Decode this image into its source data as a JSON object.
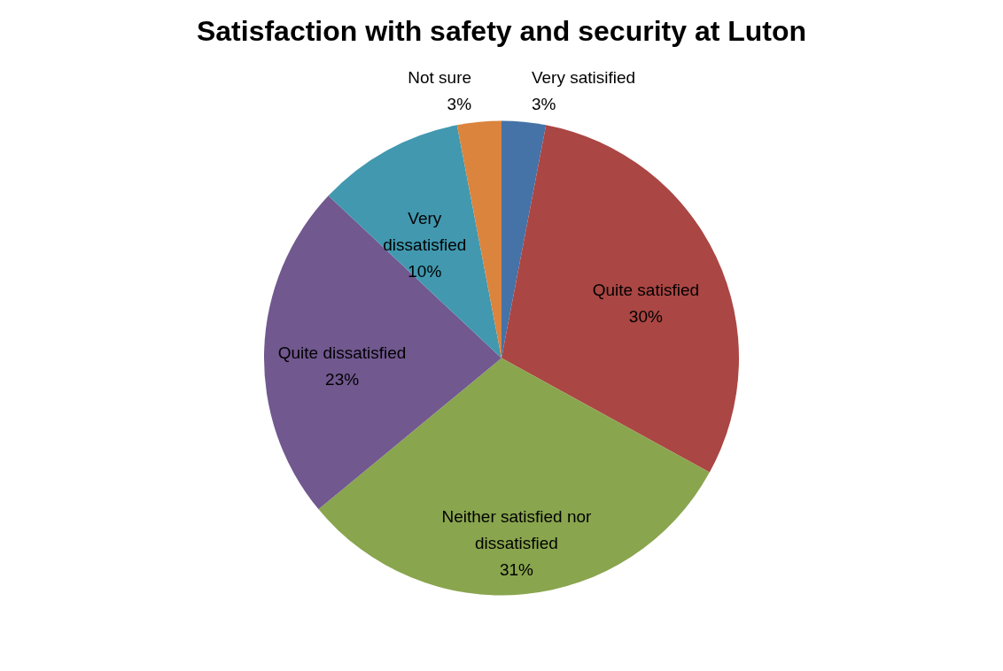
{
  "chart_data": {
    "type": "pie",
    "title": "Satisfaction with safety and security at Luton",
    "categories": [
      "Very satisified",
      "Quite satisfied",
      "Neither satisfied nor dissatisfied",
      "Quite dissatisfied",
      "Very dissatisfied",
      "Not sure"
    ],
    "values": [
      3,
      30,
      31,
      23,
      10,
      3
    ],
    "value_labels": [
      "3%",
      "30%",
      "31%",
      "23%",
      "10%",
      "3%"
    ],
    "colors": [
      "#4572a7",
      "#aa4643",
      "#89a54e",
      "#71588f",
      "#4198af",
      "#db843d"
    ]
  }
}
